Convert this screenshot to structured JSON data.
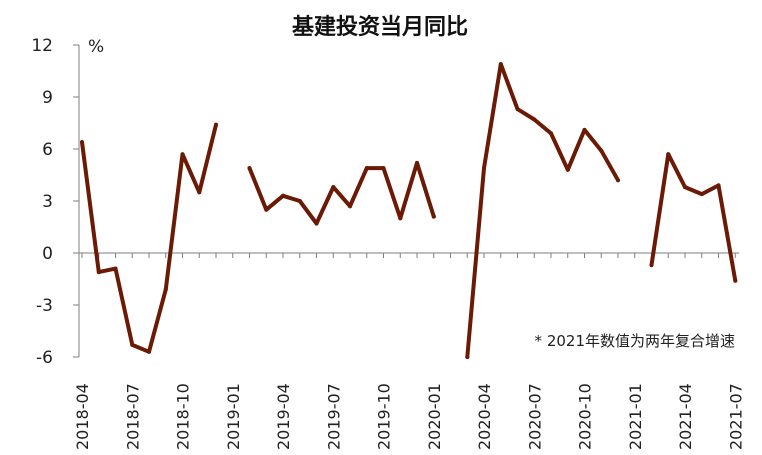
{
  "chart_data": {
    "type": "line",
    "title": "基建投资当月同比",
    "ylabel": "%",
    "note": "* 2021年数值为两年复合增速",
    "ylim": [
      -6,
      12
    ],
    "yticks": [
      12,
      9,
      6,
      3,
      0,
      -3,
      -6
    ],
    "negative_tick_color": "#ff0000",
    "line_color": "#6b1a05",
    "grid": false,
    "x_tick_labels": [
      "2018-04",
      "2018-07",
      "2018-10",
      "2019-01",
      "2019-04",
      "2019-07",
      "2019-10",
      "2020-01",
      "2020-04",
      "2020-07",
      "2020-10",
      "2021-01",
      "2021-04",
      "2021-07"
    ],
    "x": [
      "2018-04",
      "2018-05",
      "2018-06",
      "2018-07",
      "2018-08",
      "2018-09",
      "2018-10",
      "2018-11",
      "2018-12",
      "2019-01",
      "2019-02",
      "2019-03",
      "2019-04",
      "2019-05",
      "2019-06",
      "2019-07",
      "2019-08",
      "2019-09",
      "2019-10",
      "2019-11",
      "2019-12",
      "2020-01",
      "2020-02",
      "2020-03",
      "2020-04",
      "2020-05",
      "2020-06",
      "2020-07",
      "2020-08",
      "2020-09",
      "2020-10",
      "2020-11",
      "2020-12",
      "2021-01",
      "2021-02",
      "2021-03",
      "2021-04",
      "2021-05",
      "2021-06",
      "2021-07"
    ],
    "series": [
      {
        "name": "",
        "values": [
          6.4,
          -1.1,
          -0.9,
          -5.3,
          -5.7,
          -2.1,
          5.7,
          3.5,
          7.4,
          null,
          4.9,
          2.5,
          3.3,
          3.0,
          1.7,
          3.8,
          2.7,
          4.9,
          4.9,
          2.0,
          5.2,
          2.1,
          null,
          -6.2,
          4.9,
          10.9,
          8.3,
          7.7,
          6.9,
          4.8,
          7.1,
          5.9,
          4.2,
          null,
          -0.7,
          5.7,
          3.8,
          3.4,
          3.9,
          -1.6
        ]
      }
    ]
  }
}
